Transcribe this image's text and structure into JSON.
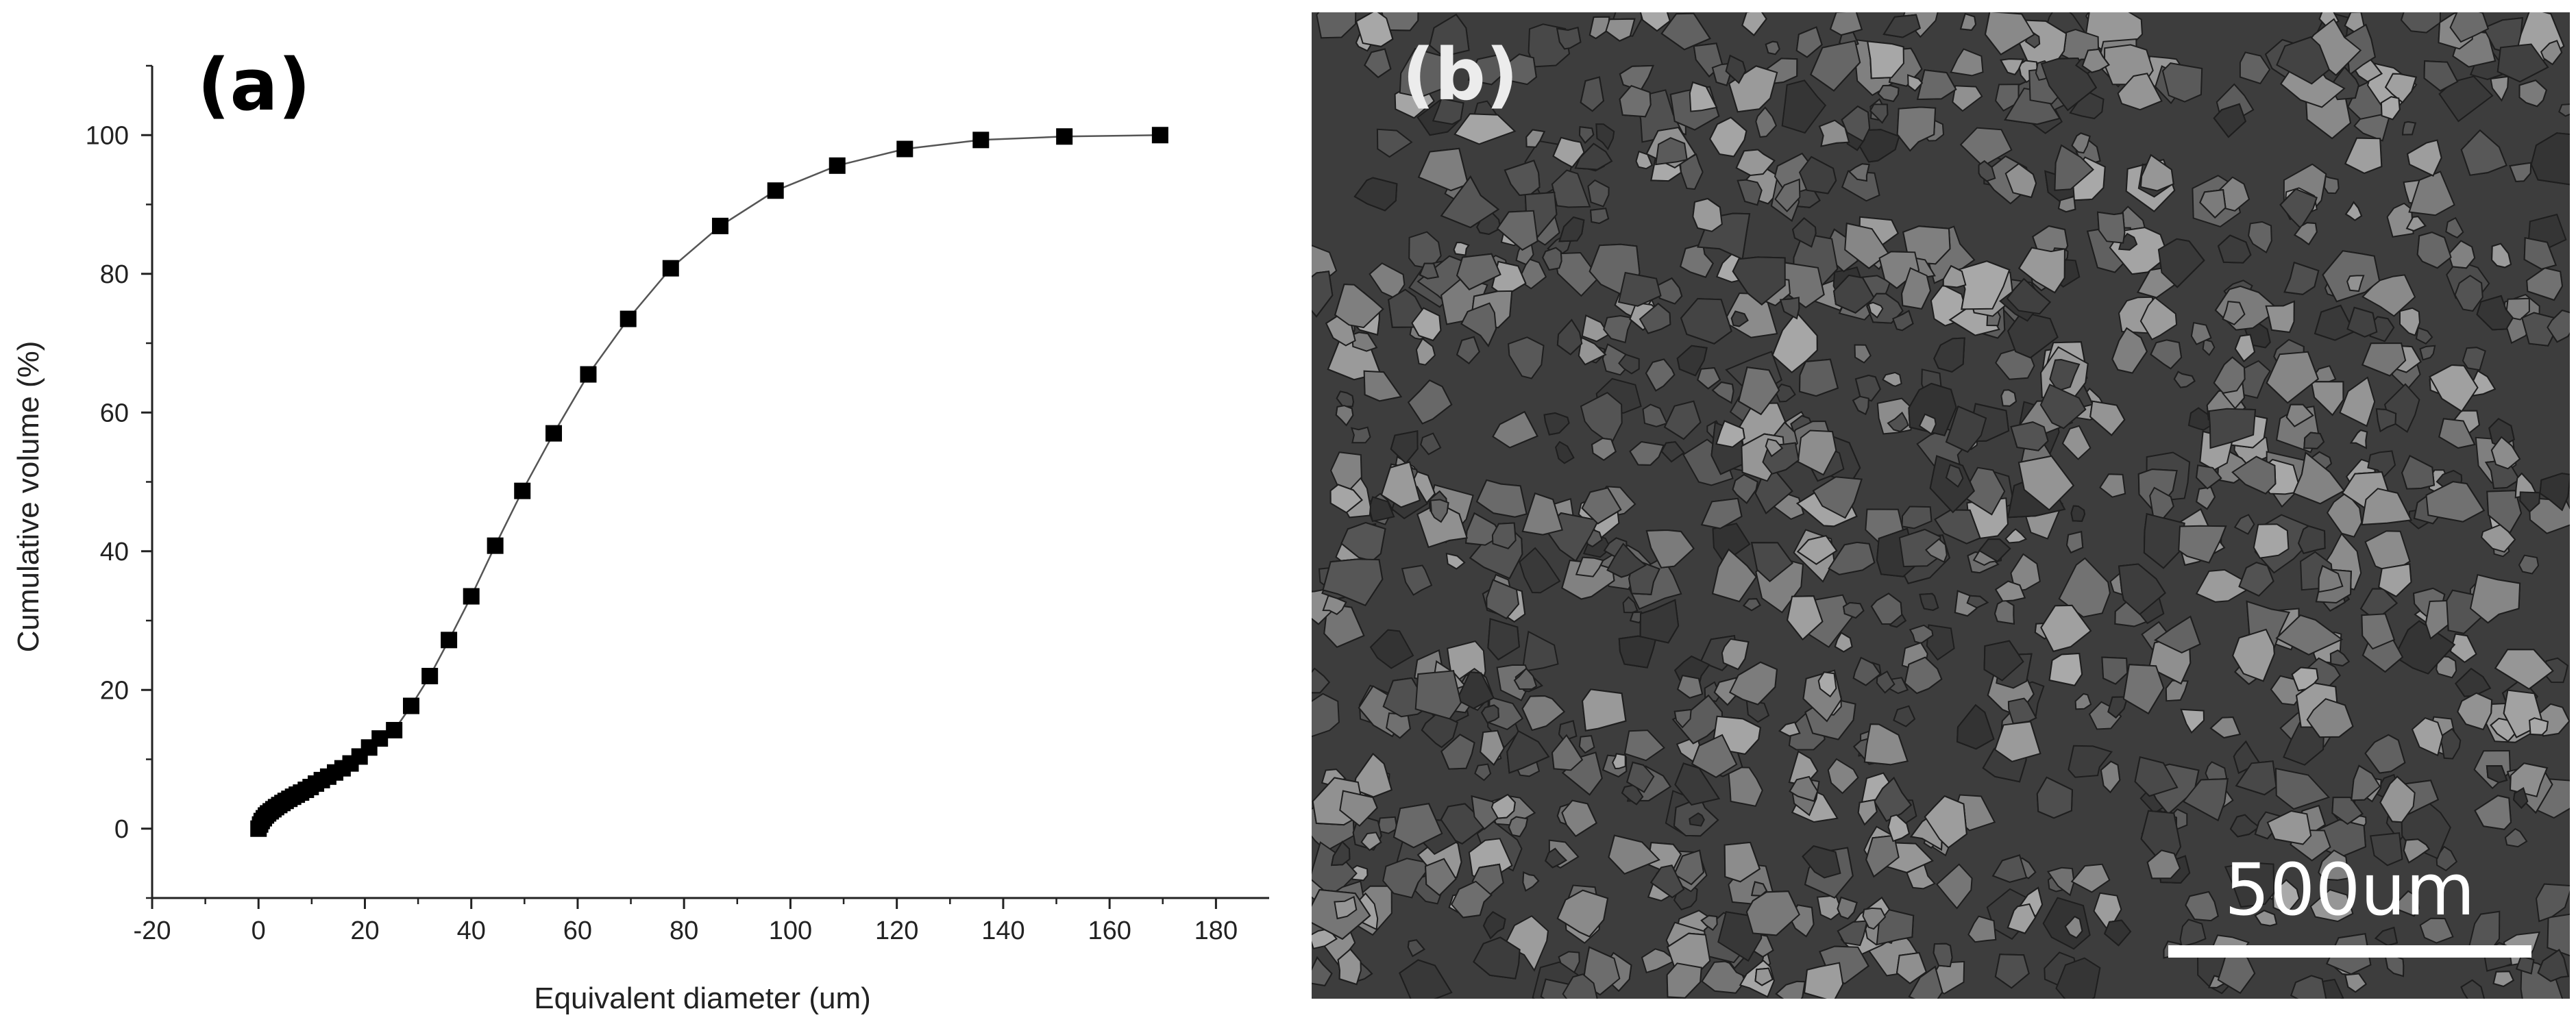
{
  "panels": {
    "a_label": "(a)",
    "b_label": "(b)"
  },
  "chart_data": {
    "type": "scatter",
    "title": "",
    "xlabel": "Equivalent diameter (um)",
    "ylabel": "Cumulative volume (%)",
    "xlim": [
      -20,
      190
    ],
    "ylim": [
      -10,
      110
    ],
    "x_ticks": [
      -20,
      0,
      20,
      40,
      60,
      80,
      100,
      120,
      140,
      160,
      180
    ],
    "y_ticks": [
      0,
      20,
      40,
      60,
      80,
      100
    ],
    "marker": "square",
    "connected": true,
    "grid": false,
    "series": [
      {
        "x": [
          0,
          0.3,
          0.6,
          1.0,
          1.4,
          1.8,
          2.3,
          2.8,
          3.3,
          3.9,
          4.5,
          5.1,
          5.8,
          6.5,
          7.2,
          8.0,
          8.9,
          9.8,
          10.8,
          11.9,
          13.1,
          14.4,
          15.8,
          17.3,
          19.0,
          20.8,
          22.8,
          25.5,
          28.7,
          32.2,
          35.8,
          40.0,
          44.5,
          49.6,
          55.5,
          62.0,
          69.5,
          77.5,
          86.8,
          97.2,
          108.8,
          121.5,
          135.8,
          151.5,
          169.5
        ],
        "y": [
          0,
          0.6,
          1.1,
          1.5,
          1.9,
          2.2,
          2.5,
          2.8,
          3.1,
          3.4,
          3.7,
          4.0,
          4.3,
          4.6,
          4.9,
          5.2,
          5.6,
          6.0,
          6.5,
          7.0,
          7.5,
          8.1,
          8.7,
          9.4,
          10.4,
          11.7,
          13.0,
          14.2,
          17.7,
          22.0,
          27.2,
          33.5,
          40.8,
          48.7,
          57.0,
          65.5,
          73.5,
          80.8,
          86.9,
          92.0,
          95.6,
          98.0,
          99.3,
          99.8,
          100.0
        ]
      }
    ],
    "colors": {
      "marker": "#000000",
      "line": "#555555",
      "axis": "#222222"
    }
  },
  "image_panel": {
    "scale_bar_label": "500um"
  }
}
